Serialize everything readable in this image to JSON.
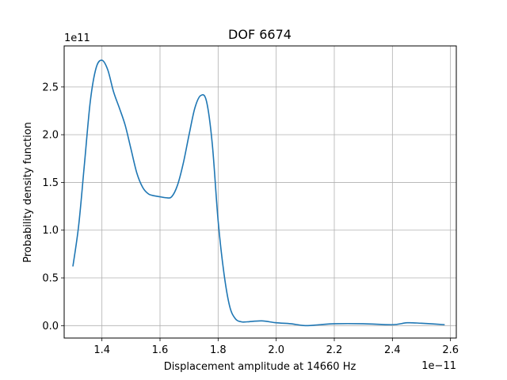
{
  "chart_data": {
    "type": "line",
    "title": "DOF 6674",
    "xlabel": "Displacement amplitude at 14660 Hz",
    "ylabel": "Probability density function",
    "x_offset_label": "1e−11",
    "y_offset_label": "1e11",
    "xlim": [
      1.27,
      2.62
    ],
    "ylim": [
      -0.13,
      2.93
    ],
    "x_ticks": [
      1.4,
      1.6,
      1.8,
      2.0,
      2.2,
      2.4,
      2.6
    ],
    "x_tick_labels": [
      "1.4",
      "1.6",
      "1.8",
      "2.0",
      "2.2",
      "2.4",
      "2.6"
    ],
    "y_ticks": [
      0.0,
      0.5,
      1.0,
      1.5,
      2.0,
      2.5
    ],
    "y_tick_labels": [
      "0.0",
      "0.5",
      "1.0",
      "1.5",
      "2.0",
      "2.5"
    ],
    "grid": true,
    "series": [
      {
        "color": "#1f77b4",
        "x": [
          1.3,
          1.32,
          1.34,
          1.36,
          1.38,
          1.4,
          1.42,
          1.44,
          1.46,
          1.48,
          1.5,
          1.52,
          1.54,
          1.56,
          1.58,
          1.6,
          1.62,
          1.64,
          1.66,
          1.68,
          1.7,
          1.72,
          1.74,
          1.76,
          1.78,
          1.8,
          1.82,
          1.84,
          1.86,
          1.88,
          1.9,
          1.95,
          2.0,
          2.05,
          2.1,
          2.15,
          2.2,
          2.3,
          2.4,
          2.45,
          2.5,
          2.58
        ],
        "y": [
          0.62,
          1.05,
          1.7,
          2.35,
          2.7,
          2.78,
          2.68,
          2.45,
          2.28,
          2.1,
          1.85,
          1.6,
          1.45,
          1.38,
          1.36,
          1.35,
          1.34,
          1.35,
          1.47,
          1.7,
          2.0,
          2.28,
          2.41,
          2.35,
          1.9,
          1.1,
          0.55,
          0.2,
          0.07,
          0.04,
          0.04,
          0.05,
          0.03,
          0.02,
          0.0,
          0.01,
          0.02,
          0.02,
          0.01,
          0.03,
          0.025,
          0.01
        ]
      }
    ]
  }
}
